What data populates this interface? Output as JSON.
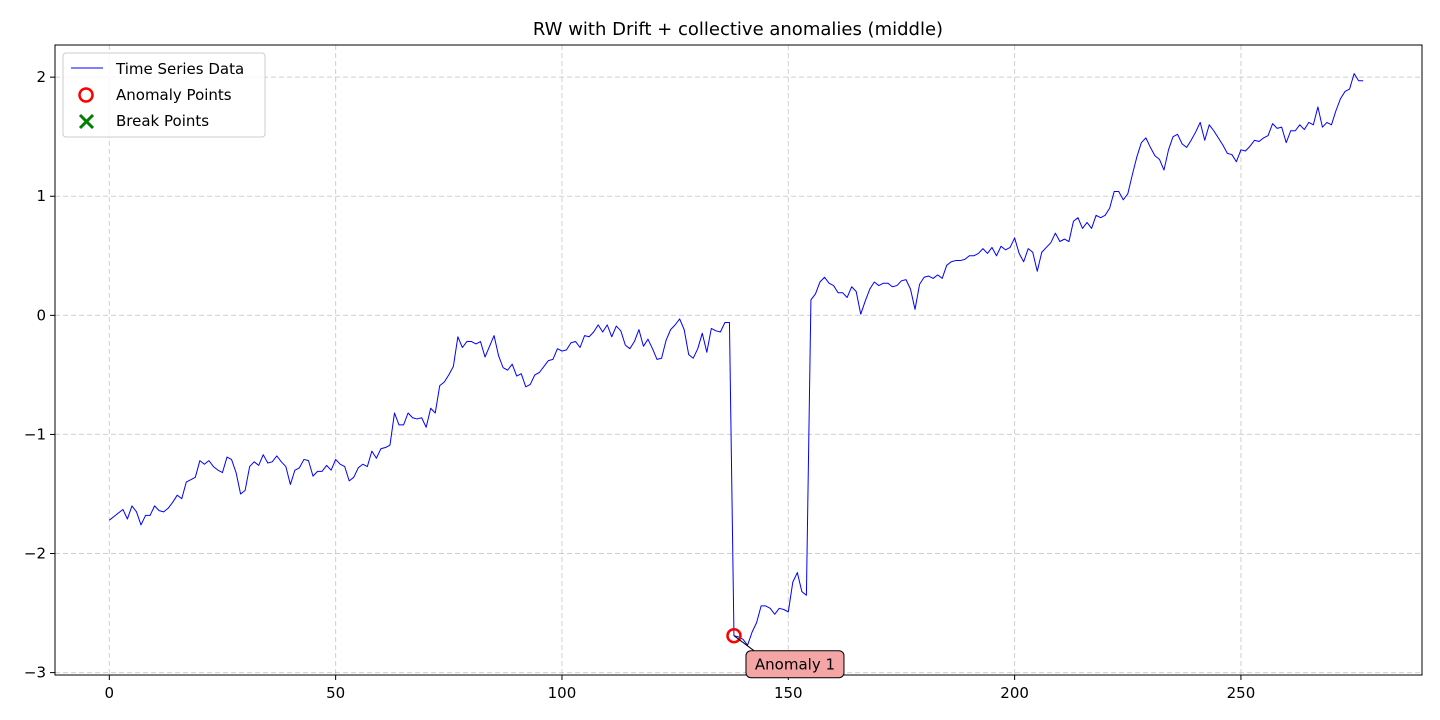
{
  "chart_data": {
    "type": "line",
    "title": "RW with Drift + collective anomalies (middle)",
    "xlabel": "",
    "ylabel": "",
    "xlim": [
      -12,
      290
    ],
    "ylim": [
      -3.02,
      2.27
    ],
    "xticks": [
      0,
      50,
      100,
      150,
      200,
      250
    ],
    "yticks": [
      -3,
      -2,
      -1,
      0,
      1,
      2
    ],
    "xtick_labels": [
      "0",
      "50",
      "100",
      "150",
      "200",
      "250"
    ],
    "ytick_labels": [
      "−3",
      "−2",
      "−1",
      "0",
      "1",
      "2"
    ],
    "grid": true,
    "legend_position": "top-left",
    "colors": {
      "series": "#0000ff",
      "anomaly": "#ff0000",
      "break": "#008000",
      "annotation_fill": "#f4a5a5"
    },
    "series": [
      {
        "name": "Time Series Data",
        "x": [
          0,
          1,
          2,
          3,
          4,
          5,
          6,
          7,
          8,
          9,
          10,
          11,
          12,
          13,
          14,
          15,
          16,
          17,
          18,
          19,
          20,
          21,
          22,
          23,
          24,
          25,
          26,
          27,
          28,
          29,
          30,
          31,
          32,
          33,
          34,
          35,
          36,
          37,
          38,
          39,
          40,
          41,
          42,
          43,
          44,
          45,
          46,
          47,
          48,
          49,
          50,
          51,
          52,
          53,
          54,
          55,
          56,
          57,
          58,
          59,
          60,
          61,
          62,
          63,
          64,
          65,
          66,
          67,
          68,
          69,
          70,
          71,
          72,
          73,
          74,
          75,
          76,
          77,
          78,
          79,
          80,
          81,
          82,
          83,
          84,
          85,
          86,
          87,
          88,
          89,
          90,
          91,
          92,
          93,
          94,
          95,
          96,
          97,
          98,
          99,
          100,
          101,
          102,
          103,
          104,
          105,
          106,
          107,
          108,
          109,
          110,
          111,
          112,
          113,
          114,
          115,
          116,
          117,
          118,
          119,
          120,
          121,
          122,
          123,
          124,
          125,
          126,
          127,
          128,
          129,
          130,
          131,
          132,
          133,
          134,
          135,
          136,
          137,
          138,
          139,
          140,
          141,
          142,
          143,
          144,
          145,
          146,
          147,
          148,
          149,
          150,
          151,
          152,
          153,
          154,
          155,
          156,
          157,
          158,
          159,
          160,
          161,
          162,
          163,
          164,
          165,
          166,
          167,
          168,
          169,
          170,
          171,
          172,
          173,
          174,
          175,
          176,
          177,
          178,
          179,
          180,
          181,
          182,
          183,
          184,
          185,
          186,
          187,
          188,
          189,
          190,
          191,
          192,
          193,
          194,
          195,
          196,
          197,
          198,
          199,
          200,
          201,
          202,
          203,
          204,
          205,
          206,
          207,
          208,
          209,
          210,
          211,
          212,
          213,
          214,
          215,
          216,
          217,
          218,
          219,
          220,
          221,
          222,
          223,
          224,
          225,
          226,
          227,
          228,
          229,
          230,
          231,
          232,
          233,
          234,
          235,
          236,
          237,
          238,
          239,
          240,
          241,
          242,
          243,
          244,
          245,
          246,
          247,
          248,
          249,
          250,
          251,
          252,
          253,
          254,
          255,
          256,
          257,
          258,
          259,
          260,
          261,
          262,
          263,
          264,
          265,
          266,
          267,
          268,
          269,
          270,
          271,
          272,
          273,
          274,
          275,
          276,
          277
        ],
        "values": [
          -1.72,
          -1.69,
          -1.66,
          -1.63,
          -1.71,
          -1.6,
          -1.65,
          -1.76,
          -1.68,
          -1.68,
          -1.6,
          -1.64,
          -1.65,
          -1.62,
          -1.57,
          -1.51,
          -1.54,
          -1.4,
          -1.38,
          -1.36,
          -1.22,
          -1.25,
          -1.22,
          -1.27,
          -1.3,
          -1.32,
          -1.19,
          -1.21,
          -1.32,
          -1.5,
          -1.47,
          -1.27,
          -1.23,
          -1.26,
          -1.17,
          -1.24,
          -1.23,
          -1.18,
          -1.23,
          -1.27,
          -1.42,
          -1.3,
          -1.28,
          -1.21,
          -1.22,
          -1.35,
          -1.31,
          -1.31,
          -1.26,
          -1.3,
          -1.21,
          -1.25,
          -1.27,
          -1.39,
          -1.36,
          -1.28,
          -1.25,
          -1.27,
          -1.14,
          -1.2,
          -1.12,
          -1.11,
          -1.09,
          -0.82,
          -0.92,
          -0.92,
          -0.82,
          -0.86,
          -0.87,
          -0.86,
          -0.94,
          -0.78,
          -0.82,
          -0.59,
          -0.56,
          -0.5,
          -0.43,
          -0.18,
          -0.27,
          -0.22,
          -0.22,
          -0.24,
          -0.22,
          -0.35,
          -0.26,
          -0.17,
          -0.34,
          -0.44,
          -0.46,
          -0.41,
          -0.51,
          -0.49,
          -0.6,
          -0.58,
          -0.5,
          -0.48,
          -0.43,
          -0.38,
          -0.37,
          -0.28,
          -0.3,
          -0.29,
          -0.23,
          -0.22,
          -0.27,
          -0.17,
          -0.18,
          -0.14,
          -0.08,
          -0.14,
          -0.08,
          -0.18,
          -0.09,
          -0.13,
          -0.25,
          -0.28,
          -0.22,
          -0.12,
          -0.26,
          -0.2,
          -0.28,
          -0.37,
          -0.36,
          -0.21,
          -0.12,
          -0.08,
          -0.03,
          -0.12,
          -0.33,
          -0.36,
          -0.28,
          -0.15,
          -0.31,
          -0.11,
          -0.13,
          -0.14,
          -0.06,
          -0.06,
          -2.69,
          -2.7,
          -2.72,
          -2.77,
          -2.66,
          -2.58,
          -2.44,
          -2.44,
          -2.46,
          -2.51,
          -2.46,
          -2.47,
          -2.49,
          -2.24,
          -2.16,
          -2.32,
          -2.35,
          0.13,
          0.18,
          0.28,
          0.32,
          0.27,
          0.25,
          0.19,
          0.19,
          0.15,
          0.24,
          0.2,
          0.01,
          0.12,
          0.22,
          0.28,
          0.25,
          0.27,
          0.27,
          0.24,
          0.25,
          0.29,
          0.3,
          0.22,
          0.05,
          0.26,
          0.32,
          0.33,
          0.31,
          0.34,
          0.31,
          0.42,
          0.45,
          0.46,
          0.46,
          0.47,
          0.5,
          0.5,
          0.52,
          0.56,
          0.52,
          0.57,
          0.5,
          0.58,
          0.55,
          0.57,
          0.65,
          0.52,
          0.45,
          0.56,
          0.53,
          0.37,
          0.53,
          0.57,
          0.61,
          0.69,
          0.62,
          0.64,
          0.62,
          0.79,
          0.82,
          0.73,
          0.78,
          0.73,
          0.84,
          0.82,
          0.84,
          0.9,
          1.04,
          1.04,
          0.97,
          1.02,
          1.18,
          1.33,
          1.45,
          1.49,
          1.41,
          1.34,
          1.31,
          1.22,
          1.39,
          1.5,
          1.52,
          1.44,
          1.41,
          1.47,
          1.54,
          1.62,
          1.47,
          1.6,
          1.55,
          1.49,
          1.43,
          1.36,
          1.35,
          1.29,
          1.39,
          1.38,
          1.42,
          1.47,
          1.46,
          1.49,
          1.51,
          1.61,
          1.57,
          1.58,
          1.45,
          1.55,
          1.55,
          1.6,
          1.56,
          1.62,
          1.6,
          1.75,
          1.58,
          1.62,
          1.6,
          1.72,
          1.82,
          1.88,
          1.9,
          2.03,
          1.97,
          1.97
        ]
      }
    ],
    "anomaly_points": [
      {
        "x": 138,
        "y": -2.69
      }
    ],
    "break_points": [],
    "annotations": [
      {
        "text": "Anomaly 1",
        "x": 138,
        "y": -2.69
      }
    ],
    "legend": {
      "entries": [
        {
          "label": "Time Series Data",
          "marker": "line"
        },
        {
          "label": "Anomaly Points",
          "marker": "circle"
        },
        {
          "label": "Break Points",
          "marker": "x"
        }
      ]
    }
  }
}
